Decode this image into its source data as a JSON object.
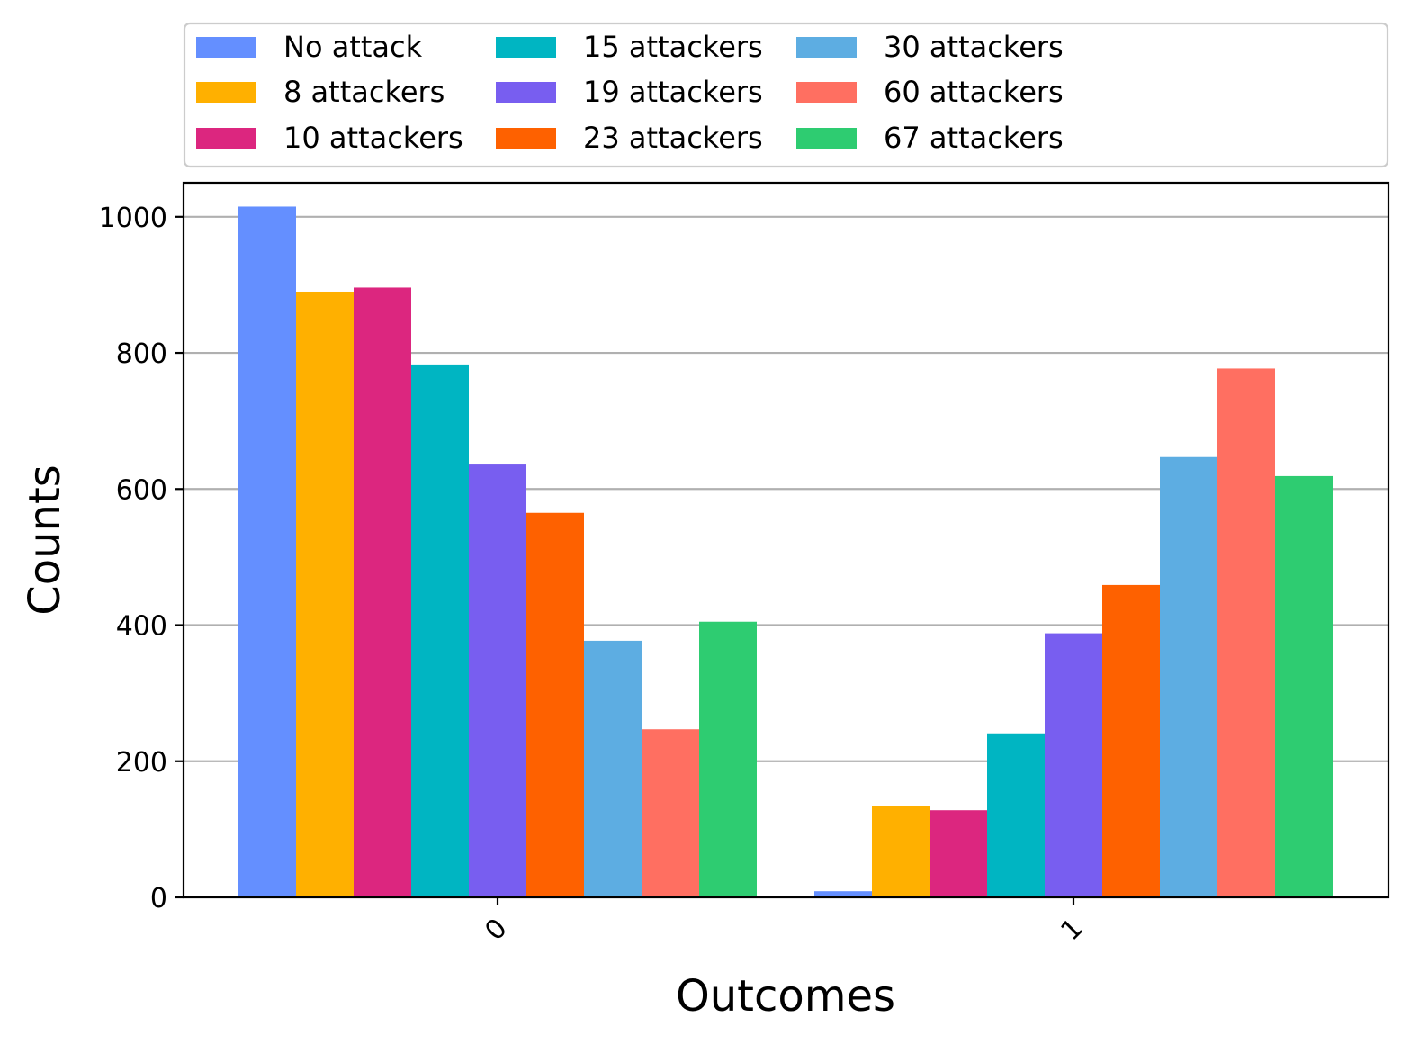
{
  "chart_data": {
    "type": "bar",
    "xlabel": "Outcomes",
    "ylabel": "Counts",
    "categories": [
      "0",
      "1"
    ],
    "ylim": [
      0,
      1050
    ],
    "yticks": [
      0,
      200,
      400,
      600,
      800,
      1000
    ],
    "grid": "y",
    "legend_position": "top",
    "series": [
      {
        "name": "No attack",
        "color": "#648fff",
        "values": [
          1015,
          9
        ]
      },
      {
        "name": "8 attackers",
        "color": "#ffb000",
        "values": [
          890,
          134
        ]
      },
      {
        "name": "10 attackers",
        "color": "#dc267f",
        "values": [
          896,
          128
        ]
      },
      {
        "name": "15 attackers",
        "color": "#00b5c2",
        "values": [
          783,
          241
        ]
      },
      {
        "name": "19 attackers",
        "color": "#785ef0",
        "values": [
          636,
          388
        ]
      },
      {
        "name": "23 attackers",
        "color": "#fe6100",
        "values": [
          565,
          459
        ]
      },
      {
        "name": "30 attackers",
        "color": "#5dade2",
        "values": [
          377,
          647
        ]
      },
      {
        "name": "60 attackers",
        "color": "#ff6f61",
        "values": [
          247,
          777
        ]
      },
      {
        "name": "67 attackers",
        "color": "#2ecc71",
        "values": [
          405,
          619
        ]
      }
    ]
  }
}
